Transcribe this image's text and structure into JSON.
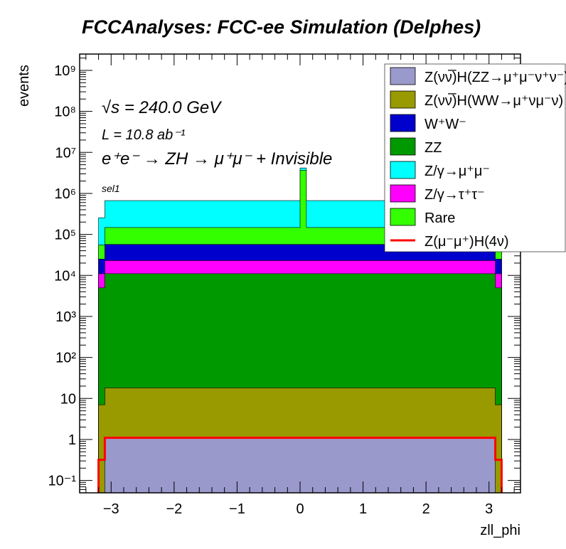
{
  "page_title": "FCCAnalyses: FCC-ee Simulation (Delphes)",
  "annotations": {
    "energy": "√s = 240.0 GeV",
    "lumi": "L = 10.8 ab⁻¹",
    "process": "e⁺e⁻ → ZH → μ⁺μ⁻ + Invisible",
    "selection": "sel1"
  },
  "chart_data": {
    "type": "bar",
    "subtype": "stacked-histogram",
    "title": "FCCAnalyses: FCC-ee Simulation (Delphes)",
    "xlabel": "zll_phi",
    "ylabel": "events",
    "xlim": [
      -3.5,
      3.5
    ],
    "ylim": [
      0.05,
      2500000000
    ],
    "yscale": "log",
    "legend_position": "top-right",
    "x_ticks": [
      "−3",
      "−2",
      "−1",
      "0",
      "1",
      "2",
      "3"
    ],
    "y_ticks": [
      "10⁻¹",
      "1",
      "10",
      "10²",
      "10³",
      "10⁴",
      "10⁵",
      "10⁶",
      "10⁷",
      "10⁸",
      "10⁹"
    ],
    "phi_range": [
      -3.2,
      3.2
    ],
    "bin_width": 0.1,
    "series": [
      {
        "name": "Z(νν̅)H(ZZ→μ⁺μ⁻ν⁺ν⁻)",
        "color": "#9999cc",
        "plateau": 1.1,
        "edge": 0.0
      },
      {
        "name": "Z(νν̅)H(WW→μ⁺νμ⁻ν)",
        "color": "#999900",
        "plateau": 17,
        "edge": 7
      },
      {
        "name": "ZZ",
        "color": "#009900",
        "plateau": 11000,
        "edge": 5000
      },
      {
        "name": "Z/γ→τ⁺τ⁻",
        "color": "#ff00ff",
        "plateau": 12000,
        "edge": 6000
      },
      {
        "name": "W⁺W⁻",
        "color": "#0000cc",
        "plateau": 34000,
        "edge": 14000
      },
      {
        "name": "Rare",
        "color": "#33ff00",
        "plateau": 90000,
        "edge": 30000,
        "spike_x": 0.05,
        "spike_value": 3600000
      },
      {
        "name": "Z/γ→μ⁺μ⁻",
        "color": "#00ffff",
        "plateau": 520000,
        "edge": 200000
      }
    ],
    "signal": {
      "name": "Z(μ⁻μ⁺)H(4ν)",
      "color": "#ff0000",
      "plateau": 1.1,
      "edge": 0.32
    },
    "legend_order": [
      "Z(νν̅)H(ZZ→μ⁺μ⁻ν⁺ν⁻)",
      "Z(νν̅)H(WW→μ⁺νμ⁻ν)",
      "W⁺W⁻",
      "ZZ",
      "Z/γ→μ⁺μ⁻",
      "Z/γ→τ⁺τ⁻",
      "Rare",
      "Z(μ⁻μ⁺)H(4ν)"
    ]
  }
}
